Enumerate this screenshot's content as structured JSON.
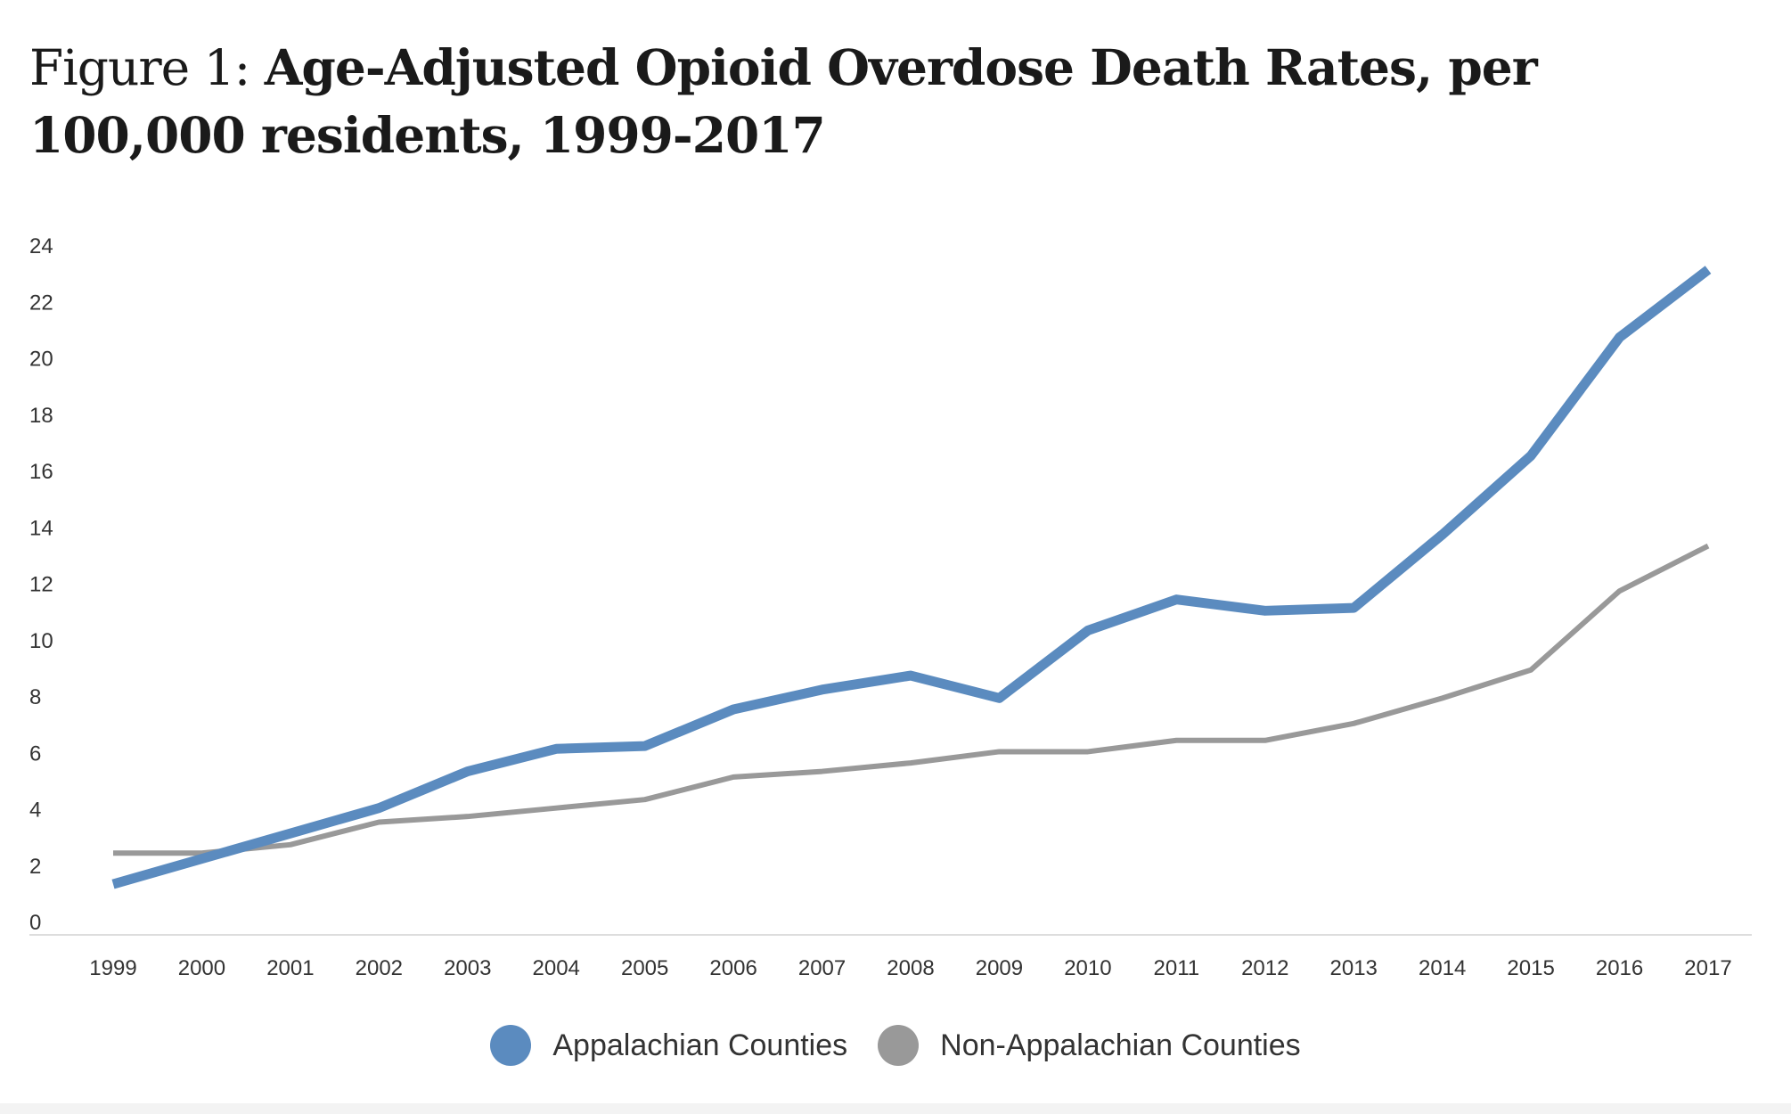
{
  "chart_data": {
    "type": "line",
    "title_prefix": "Figure 1:",
    "title": "Age-Adjusted Opioid Overdose Death Rates, per 100,000 residents, 1999-2017",
    "xlabel": "",
    "ylabel": "",
    "x": [
      "1999",
      "2000",
      "2001",
      "2002",
      "2003",
      "2004",
      "2005",
      "2006",
      "2007",
      "2008",
      "2009",
      "2010",
      "2011",
      "2012",
      "2013",
      "2014",
      "2015",
      "2016",
      "2017"
    ],
    "yticks": [
      0,
      2,
      4,
      6,
      8,
      10,
      12,
      14,
      16,
      18,
      20,
      22,
      24
    ],
    "ylim": [
      0,
      24
    ],
    "grid": false,
    "legend_position": "bottom",
    "series": [
      {
        "name": "Appalachian Counties",
        "color": "#5b8bbf",
        "values": [
          1.8,
          2.7,
          3.6,
          4.5,
          5.8,
          6.6,
          6.7,
          8.0,
          8.7,
          9.2,
          8.4,
          10.8,
          11.9,
          11.5,
          11.6,
          14.2,
          17.0,
          21.2,
          23.6
        ]
      },
      {
        "name": "Non-Appalachian Counties",
        "color": "#999999",
        "values": [
          2.9,
          2.9,
          3.2,
          4.0,
          4.2,
          4.5,
          4.8,
          5.6,
          5.8,
          6.1,
          6.5,
          6.5,
          6.9,
          6.9,
          7.5,
          8.4,
          9.4,
          12.2,
          13.8
        ]
      }
    ]
  }
}
